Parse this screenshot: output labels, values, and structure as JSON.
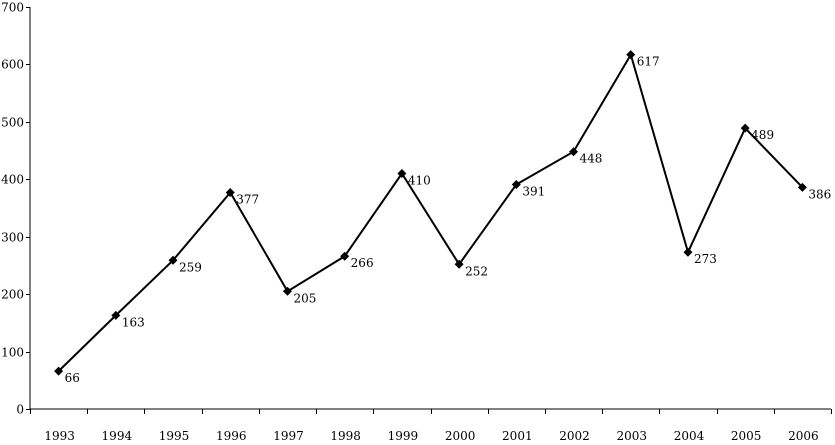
{
  "chart_data": {
    "type": "line",
    "title": "",
    "xlabel": "",
    "ylabel": "",
    "categories": [
      "1993",
      "1994",
      "1995",
      "1996",
      "1997",
      "1998",
      "1999",
      "2000",
      "2001",
      "2002",
      "2003",
      "2004",
      "2005",
      "2006"
    ],
    "series": [
      {
        "name": "",
        "values": [
          66,
          163,
          259,
          377,
          205,
          266,
          410,
          252,
          391,
          448,
          617,
          273,
          489,
          386
        ],
        "data_labels": [
          "66",
          "163",
          "259",
          "377",
          "205",
          "266",
          "410",
          "252",
          "391",
          "448",
          "617",
          "273",
          "489",
          "386"
        ]
      }
    ],
    "ylim": [
      0,
      700
    ],
    "y_ticks": [
      0,
      100,
      200,
      300,
      400,
      500,
      600,
      700
    ],
    "y_tick_labels": [
      "0",
      "100",
      "200",
      "300",
      "400",
      "500",
      "600",
      "700"
    ],
    "grid": false,
    "legend": "none",
    "line_color": "#000000",
    "marker_color": "#000000",
    "marker": "diamond"
  }
}
